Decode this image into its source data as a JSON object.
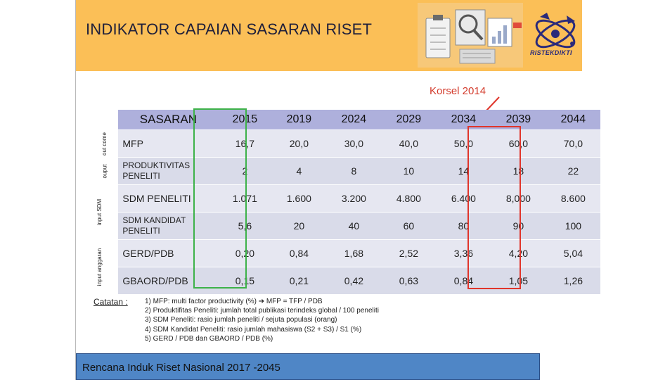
{
  "header": {
    "title": "INDIKATOR CAPAIAN SASARAN RISET",
    "logo_text": "RISTEKDIKTI"
  },
  "annotation": {
    "korsel": "Korsel 2014"
  },
  "table": {
    "columns": [
      "SASARAN",
      "2015",
      "2019",
      "2024",
      "2029",
      "2034",
      "2039",
      "2044"
    ],
    "groups": [
      {
        "label": "out come",
        "rows": 1
      },
      {
        "label": "ouput",
        "rows": 1
      },
      {
        "label": "input SDM",
        "rows": 2
      },
      {
        "label": "input anggaran",
        "rows": 2
      }
    ],
    "rows": [
      {
        "name": "MFP",
        "values": [
          "16,7",
          "20,0",
          "30,0",
          "40,0",
          "50,0",
          "60,0",
          "70,0"
        ]
      },
      {
        "name": "PRODUKTIVITAS PENELITI",
        "values": [
          "2",
          "4",
          "8",
          "10",
          "14",
          "18",
          "22"
        ]
      },
      {
        "name": "SDM PENELITI",
        "values": [
          "1.071",
          "1.600",
          "3.200",
          "4.800",
          "6.400",
          "8,000",
          "8.600"
        ]
      },
      {
        "name": "SDM KANDIDAT PENELITI",
        "values": [
          "5,6",
          "20",
          "40",
          "60",
          "80",
          "90",
          "100"
        ]
      },
      {
        "name": "GERD/PDB",
        "values": [
          "0,20",
          "0,84",
          "1,68",
          "2,52",
          "3,36",
          "4,20",
          "5,04"
        ]
      },
      {
        "name": "GBAORD/PDB",
        "values": [
          "0,15",
          "0,21",
          "0,42",
          "0,63",
          "0,84",
          "1,05",
          "1,26"
        ]
      }
    ]
  },
  "notes": {
    "label": "Catatan :",
    "lines": [
      "1) MFP: multi factor productivity (%) ➔ MFP = TFP / PDB",
      "2) Produktifitas Peneliti: jumlah total publikasi terindeks global / 100 peneliti",
      "3) SDM Peneliti: rasio jumlah peneliti / sejuta populasi (orang)",
      "4) SDM Kandidat Peneliti: rasio jumlah mahasiswa (S2 + S3) / S1 (%)",
      "5) GERD / PDB dan GBAORD / PDB (%)"
    ]
  },
  "footer": {
    "text": "Rencana Induk Riset Nasional 2017 -2045"
  },
  "colors": {
    "header_bg": "#fbbf57",
    "table_head": "#aeb0dc",
    "highlight_2015": "#3db249",
    "highlight_2039": "#e0352b",
    "footer_bg": "#4f86c6"
  }
}
